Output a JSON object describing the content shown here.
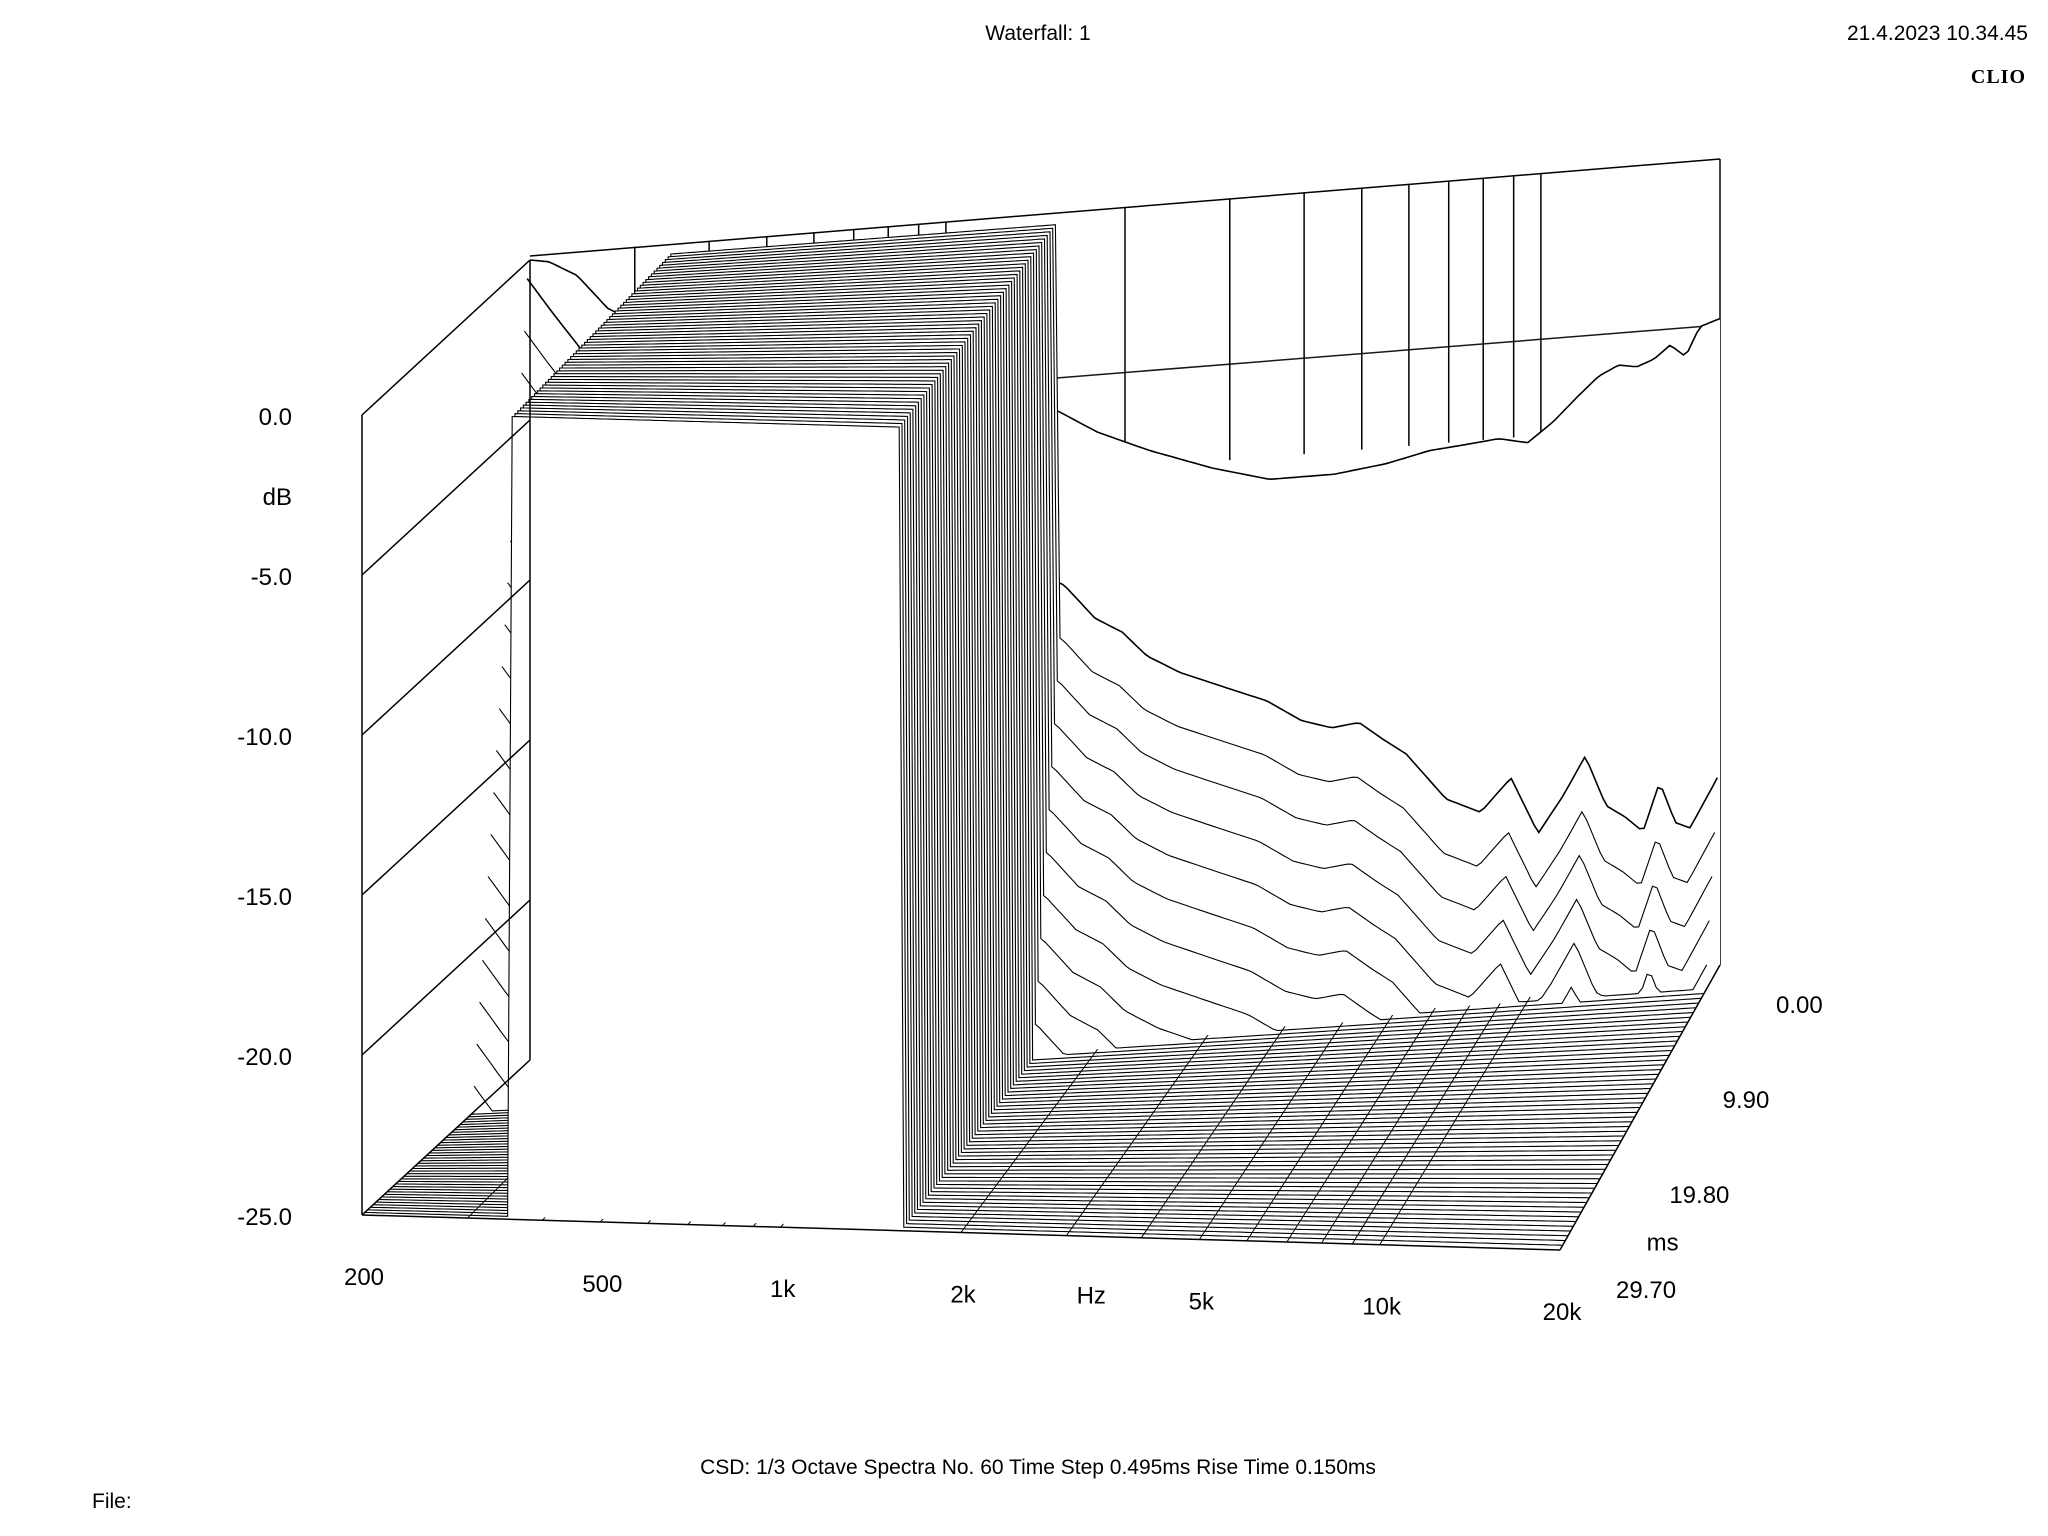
{
  "header": {
    "title": "Waterfall: 1",
    "timestamp": "21.4.2023 10.34.45",
    "brand": "CLIO"
  },
  "footer": {
    "settings": "CSD:   1/3 Octave   Spectra No. 60   Time Step 0.495ms   Rise Time 0.150ms",
    "file_label": "File:"
  },
  "chart_data": {
    "type": "area",
    "title": "Waterfall: 1",
    "analysis": "CSD (cumulative spectral decay)",
    "smoothing": "1/3 Octave",
    "spectra_count": 60,
    "time_step_ms": 0.495,
    "rise_time_ms": 0.15,
    "x_axis": {
      "label": "Hz",
      "scale": "log",
      "range": [
        200,
        20000
      ],
      "ticks": [
        200,
        500,
        1000,
        2000,
        5000,
        10000,
        20000
      ],
      "tick_labels": [
        "200",
        "500",
        "1k",
        "2k",
        "5k",
        "10k",
        "20k"
      ]
    },
    "y_axis": {
      "label": "dB",
      "range": [
        -25,
        0
      ],
      "ticks": [
        0,
        -5,
        -10,
        -15,
        -20,
        -25
      ],
      "tick_labels": [
        "0.0",
        "-5.0",
        "-10.0",
        "-15.0",
        "-20.0",
        "-25.0"
      ]
    },
    "z_axis": {
      "label": "ms",
      "range": [
        0,
        29.7
      ],
      "ticks": [
        0,
        9.9,
        19.8,
        29.7
      ],
      "tick_labels": [
        "0.00",
        "9.90",
        "19.80",
        "29.70"
      ]
    },
    "initial_response": {
      "x": [
        200,
        215,
        240,
        270,
        300,
        320,
        340,
        370,
        400,
        450,
        500,
        560,
        620,
        680,
        720,
        760,
        800,
        900,
        1000,
        1200,
        1500,
        1800,
        2200,
        2800,
        3500,
        4500,
        5500,
        6500,
        7500,
        8500,
        9500,
        10500,
        11500,
        12500,
        13500,
        14500,
        15500,
        16500,
        17500,
        18500,
        20000
      ],
      "y": [
        0.0,
        -0.1,
        -0.6,
        -1.7,
        -2.2,
        -1.5,
        -1.3,
        -1.7,
        -2.2,
        -1.3,
        -1.5,
        -2.6,
        -3.0,
        -3.2,
        -3.3,
        -3.5,
        -3.6,
        -3.9,
        -4.4,
        -5.3,
        -5.9,
        -6.8,
        -7.5,
        -8.2,
        -8.7,
        -8.7,
        -8.5,
        -8.2,
        -8.1,
        -8.0,
        -8.2,
        -7.6,
        -6.9,
        -6.3,
        -6.0,
        -6.1,
        -5.9,
        -5.5,
        -5.9,
        -5.0,
        -4.8
      ]
    },
    "decay_0_5ms": {
      "x": [
        200,
        220,
        250,
        290,
        330,
        380,
        420,
        450,
        480,
        500,
        540,
        580,
        620,
        680,
        720,
        760,
        800,
        850,
        900,
        950,
        1000,
        1100,
        1200,
        1300,
        1400,
        1500,
        1600,
        1800,
        2000,
        2200,
        2500,
        3000,
        3500,
        4000,
        4500,
        5000,
        5500,
        6000,
        7000,
        8000,
        9000,
        10000,
        11000,
        12000,
        13000,
        14000,
        15000,
        16000,
        17000,
        18000,
        20000
      ],
      "y": [
        -0.5,
        -1.6,
        -3.0,
        -4.6,
        -5.6,
        -7.0,
        -8.8,
        -7.4,
        -6.0,
        -5.7,
        -7.0,
        -7.5,
        -6.2,
        -6.1,
        -7.2,
        -9.0,
        -9.1,
        -8.3,
        -7.3,
        -6.8,
        -6.8,
        -8.1,
        -9.2,
        -10.0,
        -10.3,
        -11.1,
        -11.4,
        -12.5,
        -13.0,
        -13.8,
        -14.4,
        -15.0,
        -15.5,
        -16.2,
        -16.5,
        -16.4,
        -17.0,
        -17.5,
        -19.0,
        -19.5,
        -18.5,
        -20.3,
        -19.2,
        -18.0,
        -19.6,
        -20.0,
        -20.5,
        -19.0,
        -20.3,
        -20.5,
        -19.0
      ]
    }
  }
}
